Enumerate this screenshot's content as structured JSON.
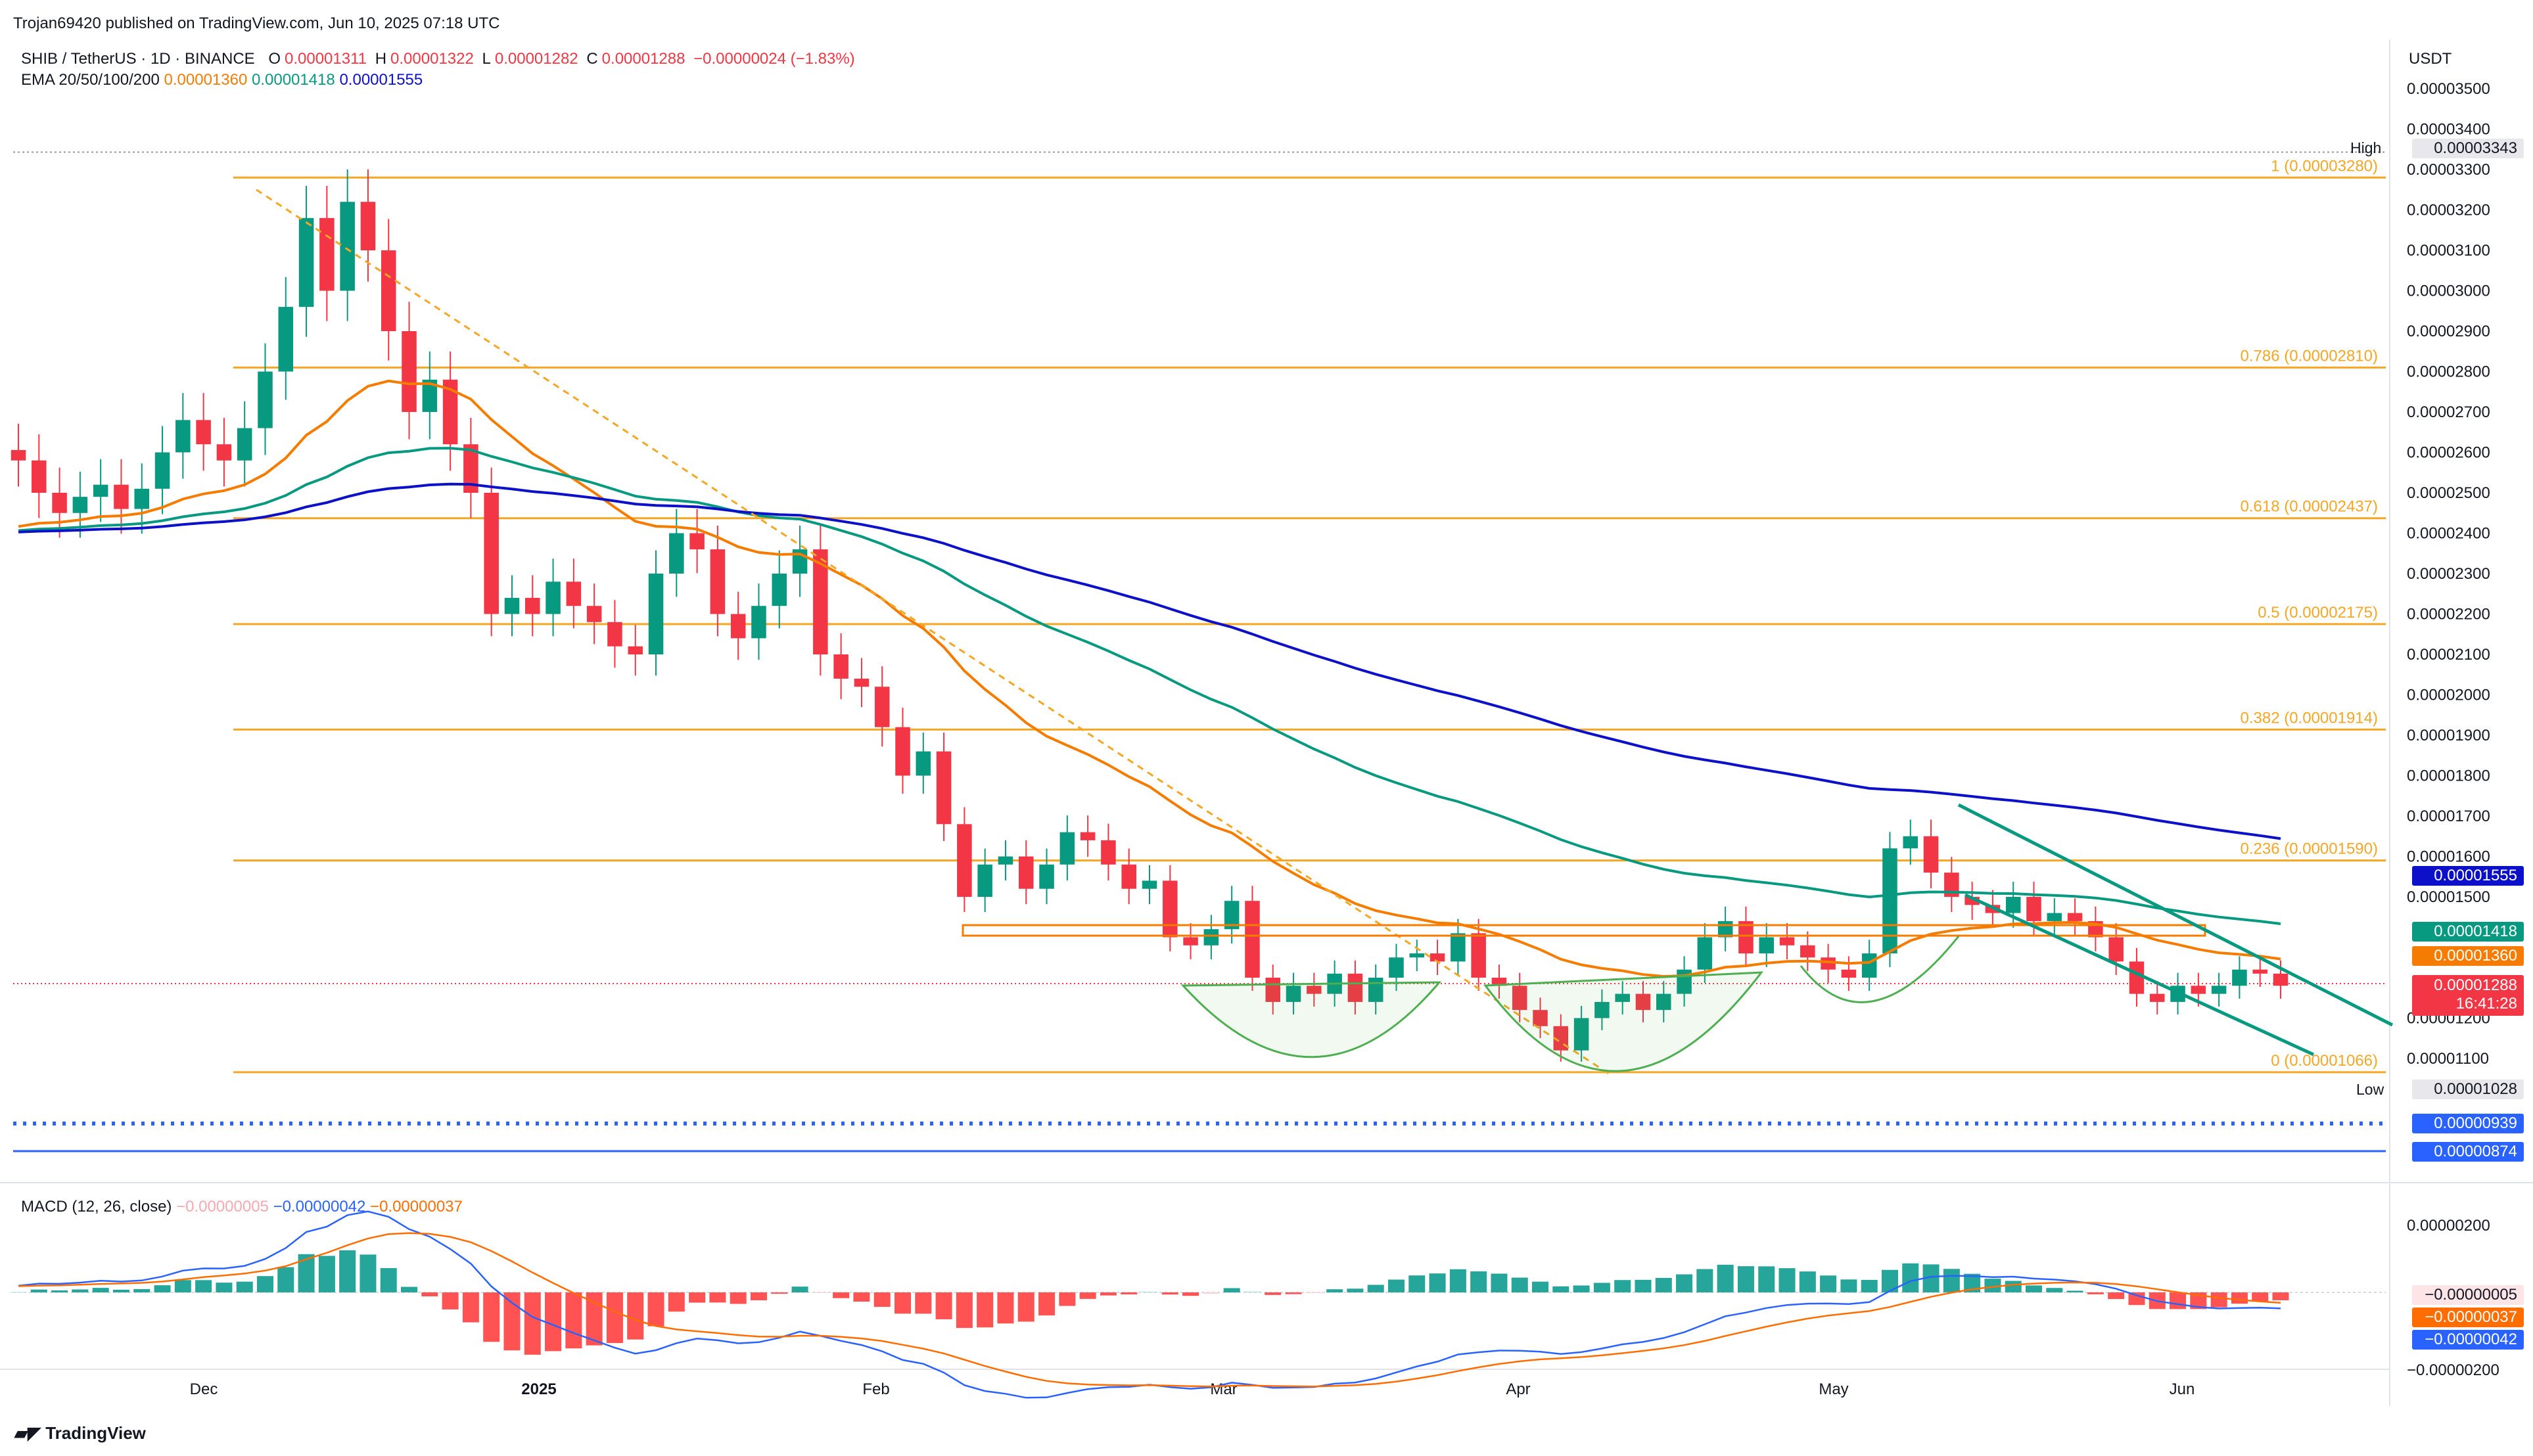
{
  "publisher": "Trojan69420 published on TradingView.com, Jun 10, 2025 07:18 UTC",
  "symbol_line": "SHIB / TetherUS · 1D · BINANCE",
  "ohlc": {
    "o_label": "O",
    "o": "0.00001311",
    "h_label": "H",
    "h": "0.00001322",
    "l_label": "L",
    "l": "0.00001282",
    "c_label": "C",
    "c": "0.00001288",
    "change": "−0.00000024 (−1.83%)"
  },
  "ema_line": {
    "label": "EMA 20/50/100/200",
    "v20": "0.00001360",
    "v50": "0.00001418",
    "v100": "0.00001555"
  },
  "currency": "USDT",
  "brand": "TradingView",
  "colors": {
    "up": "#089981",
    "down": "#f23645",
    "ema20": "#f57c00",
    "ema50": "#089981",
    "ema100": "#0d10c9",
    "fib": "#f5a623",
    "macd": "#2962ff",
    "signal": "#ff6d00",
    "pattern": "#4caf50",
    "channel": "#089981"
  },
  "price_tags": {
    "high_label": "High",
    "high": "0.00003343",
    "ema100": "0.00001555",
    "ema50": "0.00001418",
    "ema20": "0.00001360",
    "last": "0.00001288",
    "countdown": "16:41:28",
    "low_label": "Low",
    "low": "0.00001028",
    "level1": "0.00000939",
    "level2": "0.00000874"
  },
  "macd": {
    "title": "MACD (12, 26, close)",
    "v1": "−0.00000005",
    "v2": "−0.00000042",
    "v3": "−0.00000037",
    "tags": [
      "−0.00000005",
      "−0.00000037",
      "−0.00000042"
    ],
    "axis": [
      "0.00000200",
      "−0.00000200"
    ]
  },
  "chart_data": {
    "type": "candlestick",
    "y_axis_ticks": [
      "0.00003500",
      "0.00003400",
      "0.00003300",
      "0.00003200",
      "0.00003100",
      "0.00003000",
      "0.00002900",
      "0.00002800",
      "0.00002700",
      "0.00002600",
      "0.00002500",
      "0.00002400",
      "0.00002300",
      "0.00002200",
      "0.00002100",
      "0.00002000",
      "0.00001900",
      "0.00001800",
      "0.00001700",
      "0.00001600",
      "0.00001500",
      "0.00001200",
      "0.00001100"
    ],
    "x_axis_labels": [
      "Dec",
      "2025",
      "Feb",
      "Mar",
      "Apr",
      "May",
      "Jun"
    ],
    "fib_levels": [
      {
        "label": "1 (0.00003280)",
        "value": 3.28e-05
      },
      {
        "label": "0.786 (0.00002810)",
        "value": 2.81e-05
      },
      {
        "label": "0.618 (0.00002437)",
        "value": 2.437e-05
      },
      {
        "label": "0.5 (0.00002175)",
        "value": 2.175e-05
      },
      {
        "label": "0.382 (0.00001914)",
        "value": 1.914e-05
      },
      {
        "label": "0.236 (0.00001590)",
        "value": 1.59e-05
      },
      {
        "label": "0 (0.00001066)",
        "value": 1.066e-05
      }
    ],
    "ema20_label": "EMA 20",
    "ema50_label": "EMA 50",
    "ema100_label": "EMA 100",
    "close_series": [
      2.58e-05,
      2.5e-05,
      2.45e-05,
      2.49e-05,
      2.52e-05,
      2.46e-05,
      2.51e-05,
      2.6e-05,
      2.68e-05,
      2.62e-05,
      2.58e-05,
      2.66e-05,
      2.8e-05,
      2.96e-05,
      3.18e-05,
      3e-05,
      3.22e-05,
      3.1e-05,
      2.9e-05,
      2.7e-05,
      2.78e-05,
      2.62e-05,
      2.5e-05,
      2.2e-05,
      2.24e-05,
      2.2e-05,
      2.28e-05,
      2.22e-05,
      2.18e-05,
      2.12e-05,
      2.1e-05,
      2.3e-05,
      2.4e-05,
      2.36e-05,
      2.2e-05,
      2.14e-05,
      2.22e-05,
      2.3e-05,
      2.36e-05,
      2.1e-05,
      2.04e-05,
      2.02e-05,
      1.92e-05,
      1.8e-05,
      1.86e-05,
      1.68e-05,
      1.5e-05,
      1.58e-05,
      1.6e-05,
      1.52e-05,
      1.58e-05,
      1.66e-05,
      1.64e-05,
      1.58e-05,
      1.52e-05,
      1.54e-05,
      1.4e-05,
      1.38e-05,
      1.42e-05,
      1.49e-05,
      1.3e-05,
      1.24e-05,
      1.28e-05,
      1.26e-05,
      1.31e-05,
      1.24e-05,
      1.3e-05,
      1.35e-05,
      1.36e-05,
      1.34e-05,
      1.41e-05,
      1.3e-05,
      1.28e-05,
      1.22e-05,
      1.18e-05,
      1.12e-05,
      1.2e-05,
      1.24e-05,
      1.26e-05,
      1.22e-05,
      1.26e-05,
      1.32e-05,
      1.4e-05,
      1.44e-05,
      1.36e-05,
      1.4e-05,
      1.38e-05,
      1.35e-05,
      1.32e-05,
      1.3e-05,
      1.36e-05,
      1.62e-05,
      1.65e-05,
      1.56e-05,
      1.5e-05,
      1.48e-05,
      1.46e-05,
      1.5e-05,
      1.44e-05,
      1.46e-05,
      1.44e-05,
      1.4e-05,
      1.34e-05,
      1.26e-05,
      1.24e-05,
      1.28e-05,
      1.26e-05,
      1.28e-05,
      1.32e-05,
      1.31e-05,
      1.28e-05
    ]
  }
}
